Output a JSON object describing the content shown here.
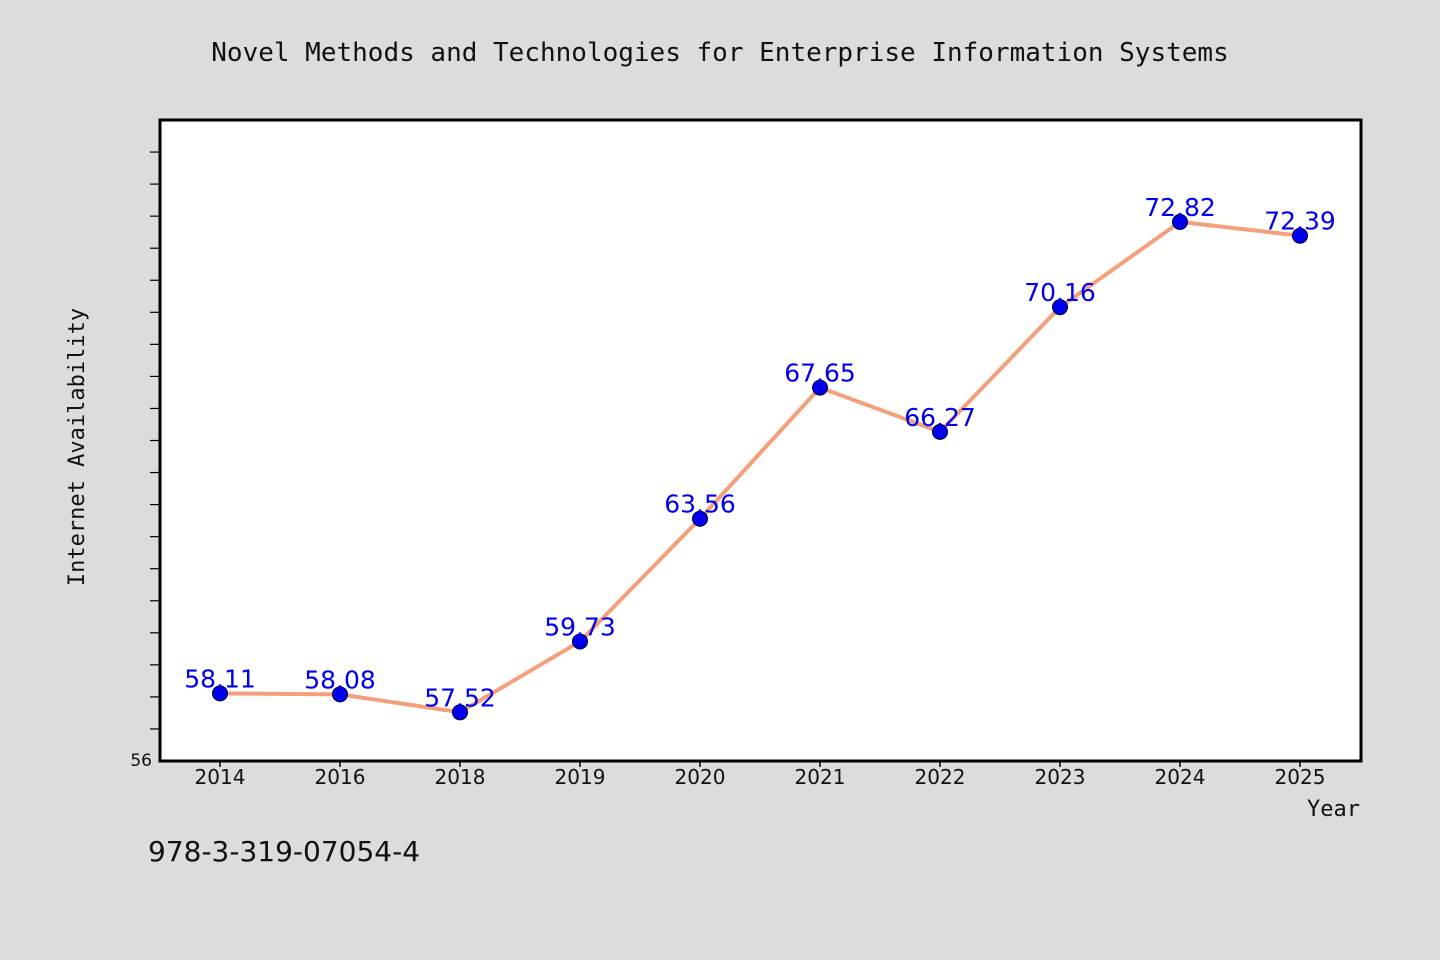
{
  "chart_data": {
    "type": "line",
    "title": "Novel Methods and Technologies for Enterprise Information Systems",
    "xlabel": "Year",
    "ylabel": "Internet Availability",
    "categories": [
      "2014",
      "2016",
      "2018",
      "2019",
      "2020",
      "2021",
      "2022",
      "2023",
      "2024",
      "2025"
    ],
    "series": [
      {
        "values": [
          58.11,
          58.08,
          57.52,
          59.73,
          63.56,
          67.65,
          66.27,
          70.16,
          72.82,
          72.39
        ]
      }
    ],
    "data_labels": [
      "58.11",
      "58.08",
      "57.52",
      "59.73",
      "63.56",
      "67.65",
      "66.27",
      "70.16",
      "72.82",
      "72.39"
    ],
    "ylim": [
      56,
      76
    ],
    "y_tick_label": "56",
    "grid": false,
    "legend": "none",
    "colors": {
      "line": "#f4a07a",
      "marker": "#0000ee",
      "data_label": "#0000ee",
      "background": "#dcdcdc",
      "plot_background": "#ffffff"
    }
  },
  "footer": {
    "isbn": "978-3-319-07054-4"
  }
}
